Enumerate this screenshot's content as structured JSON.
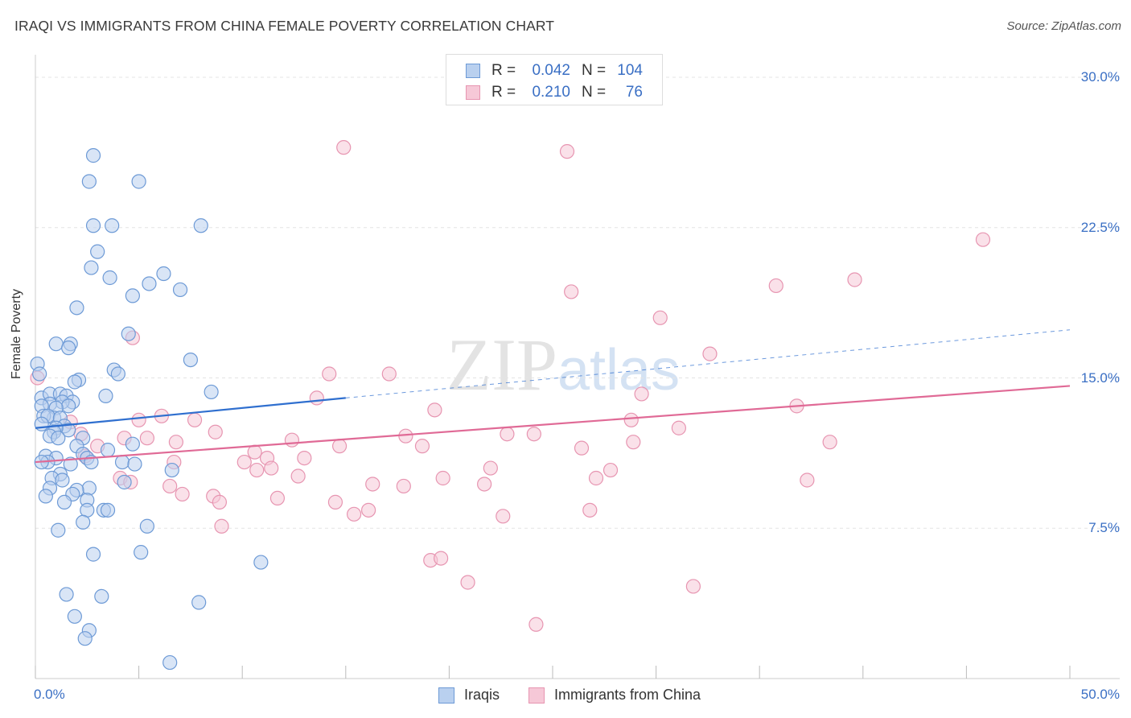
{
  "title": "IRAQI VS IMMIGRANTS FROM CHINA FEMALE POVERTY CORRELATION CHART",
  "source": "Source: ZipAtlas.com",
  "watermark": {
    "zip": "ZIP",
    "atlas": "atlas"
  },
  "legend_top": {
    "rows": [
      {
        "r_label": "R =",
        "r_value": "0.042",
        "n_label": "N =",
        "n_value": "104"
      },
      {
        "r_label": "R =",
        "r_value": "0.210",
        "n_label": "N =",
        "n_value": "76"
      }
    ]
  },
  "legend_bottom": {
    "items": [
      {
        "label": "Iraqis"
      },
      {
        "label": "Immigrants from China"
      }
    ]
  },
  "colors": {
    "iraqis_fill": "#b9d0ef",
    "iraqis_stroke": "#6d9ad6",
    "iraqis_line": "#2f6fcf",
    "china_fill": "#f6c8d7",
    "china_stroke": "#e795b1",
    "china_line": "#e06a96",
    "grid": "#e4e4e4",
    "tick_text": "#3a6fc4"
  },
  "chart_data": {
    "type": "scatter",
    "title": "IRAQI VS IMMIGRANTS FROM CHINA FEMALE POVERTY CORRELATION CHART",
    "xlabel": "",
    "ylabel": "Female Poverty",
    "xlim": [
      0,
      50
    ],
    "ylim": [
      0,
      30
    ],
    "x_tick_labels": [
      {
        "value": 0,
        "label": "0.0%"
      },
      {
        "value": 50,
        "label": "50.0%"
      }
    ],
    "y_tick_labels": [
      {
        "value": 7.5,
        "label": "7.5%"
      },
      {
        "value": 15,
        "label": "15.0%"
      },
      {
        "value": 22.5,
        "label": "22.5%"
      },
      {
        "value": 30,
        "label": "30.0%"
      }
    ],
    "grid": "horizontal dashed",
    "legend_position": "bottom",
    "series": [
      {
        "name": "Iraqis",
        "trend": {
          "x": [
            0,
            15
          ],
          "y": [
            12.5,
            14.0
          ],
          "extended_to": [
            50,
            17.4
          ]
        },
        "points": [
          [
            2.8,
            26.1
          ],
          [
            2.6,
            24.8
          ],
          [
            5.0,
            24.8
          ],
          [
            2.8,
            22.6
          ],
          [
            3.7,
            22.6
          ],
          [
            8.0,
            22.6
          ],
          [
            3.0,
            21.3
          ],
          [
            2.7,
            20.5
          ],
          [
            6.2,
            20.2
          ],
          [
            3.6,
            20.0
          ],
          [
            5.5,
            19.7
          ],
          [
            7.0,
            19.4
          ],
          [
            4.7,
            19.1
          ],
          [
            2.0,
            18.5
          ],
          [
            4.5,
            17.2
          ],
          [
            1.0,
            16.7
          ],
          [
            1.7,
            16.7
          ],
          [
            1.6,
            16.5
          ],
          [
            7.5,
            15.9
          ],
          [
            0.1,
            15.7
          ],
          [
            3.8,
            15.4
          ],
          [
            4.0,
            15.2
          ],
          [
            0.2,
            15.2
          ],
          [
            2.1,
            14.9
          ],
          [
            1.9,
            14.8
          ],
          [
            8.5,
            14.3
          ],
          [
            3.4,
            14.1
          ],
          [
            0.3,
            14.0
          ],
          [
            0.7,
            14.2
          ],
          [
            1.2,
            14.2
          ],
          [
            1.5,
            14.1
          ],
          [
            1.8,
            13.8
          ],
          [
            1.3,
            13.8
          ],
          [
            0.7,
            13.7
          ],
          [
            0.3,
            13.6
          ],
          [
            1.6,
            13.6
          ],
          [
            1.0,
            13.5
          ],
          [
            0.9,
            13.0
          ],
          [
            0.4,
            13.1
          ],
          [
            0.6,
            13.1
          ],
          [
            1.2,
            13.0
          ],
          [
            0.3,
            12.7
          ],
          [
            1.4,
            12.6
          ],
          [
            1.6,
            12.4
          ],
          [
            1.0,
            12.5
          ],
          [
            0.9,
            12.3
          ],
          [
            0.7,
            12.1
          ],
          [
            1.1,
            12.0
          ],
          [
            2.3,
            12.0
          ],
          [
            2.0,
            11.6
          ],
          [
            4.7,
            11.7
          ],
          [
            3.5,
            11.4
          ],
          [
            2.3,
            11.2
          ],
          [
            0.5,
            11.1
          ],
          [
            1.0,
            11.0
          ],
          [
            2.5,
            11.0
          ],
          [
            4.2,
            10.8
          ],
          [
            0.6,
            10.8
          ],
          [
            0.3,
            10.8
          ],
          [
            2.7,
            10.8
          ],
          [
            1.7,
            10.7
          ],
          [
            4.8,
            10.7
          ],
          [
            6.6,
            10.4
          ],
          [
            1.2,
            10.2
          ],
          [
            0.8,
            10.0
          ],
          [
            1.3,
            9.9
          ],
          [
            4.3,
            9.8
          ],
          [
            0.7,
            9.5
          ],
          [
            2.6,
            9.5
          ],
          [
            2.0,
            9.4
          ],
          [
            1.8,
            9.2
          ],
          [
            0.5,
            9.1
          ],
          [
            2.5,
            8.9
          ],
          [
            1.4,
            8.8
          ],
          [
            3.3,
            8.4
          ],
          [
            2.5,
            8.4
          ],
          [
            3.5,
            8.4
          ],
          [
            2.3,
            7.8
          ],
          [
            5.4,
            7.6
          ],
          [
            1.1,
            7.4
          ],
          [
            2.8,
            6.2
          ],
          [
            5.1,
            6.3
          ],
          [
            10.9,
            5.8
          ],
          [
            1.5,
            4.2
          ],
          [
            3.2,
            4.1
          ],
          [
            7.9,
            3.8
          ],
          [
            1.9,
            3.1
          ],
          [
            2.6,
            2.4
          ],
          [
            2.4,
            2.0
          ],
          [
            6.5,
            0.8
          ]
        ]
      },
      {
        "name": "Immigrants from China",
        "trend": {
          "x": [
            0,
            50
          ],
          "y": [
            10.8,
            14.6
          ]
        },
        "points": [
          [
            14.9,
            26.5
          ],
          [
            25.7,
            26.3
          ],
          [
            45.8,
            21.9
          ],
          [
            39.6,
            19.9
          ],
          [
            35.8,
            19.6
          ],
          [
            25.9,
            19.3
          ],
          [
            30.2,
            18.0
          ],
          [
            4.7,
            17.0
          ],
          [
            32.6,
            16.2
          ],
          [
            14.2,
            15.2
          ],
          [
            17.1,
            15.2
          ],
          [
            0.1,
            15.0
          ],
          [
            29.3,
            14.2
          ],
          [
            13.6,
            14.0
          ],
          [
            36.8,
            13.6
          ],
          [
            19.3,
            13.4
          ],
          [
            1.7,
            12.8
          ],
          [
            5.0,
            12.9
          ],
          [
            6.1,
            13.1
          ],
          [
            7.7,
            12.9
          ],
          [
            28.8,
            12.9
          ],
          [
            31.1,
            12.5
          ],
          [
            2.2,
            12.2
          ],
          [
            8.7,
            12.3
          ],
          [
            4.3,
            12.0
          ],
          [
            5.4,
            12.0
          ],
          [
            6.8,
            11.8
          ],
          [
            22.8,
            12.2
          ],
          [
            24.1,
            12.2
          ],
          [
            17.9,
            12.1
          ],
          [
            12.4,
            11.9
          ],
          [
            28.9,
            11.8
          ],
          [
            38.4,
            11.8
          ],
          [
            3.0,
            11.6
          ],
          [
            14.7,
            11.6
          ],
          [
            18.7,
            11.6
          ],
          [
            26.4,
            11.5
          ],
          [
            10.6,
            11.3
          ],
          [
            2.4,
            11.1
          ],
          [
            11.2,
            11.0
          ],
          [
            13.0,
            11.0
          ],
          [
            10.1,
            10.8
          ],
          [
            6.7,
            10.8
          ],
          [
            10.7,
            10.4
          ],
          [
            11.4,
            10.5
          ],
          [
            22.0,
            10.5
          ],
          [
            27.8,
            10.4
          ],
          [
            4.1,
            10.0
          ],
          [
            12.7,
            10.1
          ],
          [
            19.7,
            10.0
          ],
          [
            27.1,
            10.0
          ],
          [
            37.3,
            9.9
          ],
          [
            4.6,
            9.8
          ],
          [
            16.3,
            9.7
          ],
          [
            17.8,
            9.6
          ],
          [
            21.7,
            9.7
          ],
          [
            6.5,
            9.6
          ],
          [
            8.6,
            9.1
          ],
          [
            7.1,
            9.2
          ],
          [
            11.7,
            9.0
          ],
          [
            8.9,
            8.8
          ],
          [
            14.5,
            8.8
          ],
          [
            16.1,
            8.4
          ],
          [
            15.4,
            8.2
          ],
          [
            26.8,
            8.4
          ],
          [
            22.6,
            8.1
          ],
          [
            9.0,
            7.6
          ],
          [
            19.1,
            5.9
          ],
          [
            19.6,
            6.0
          ],
          [
            20.9,
            4.8
          ],
          [
            31.8,
            4.6
          ],
          [
            24.2,
            2.7
          ]
        ]
      }
    ]
  }
}
